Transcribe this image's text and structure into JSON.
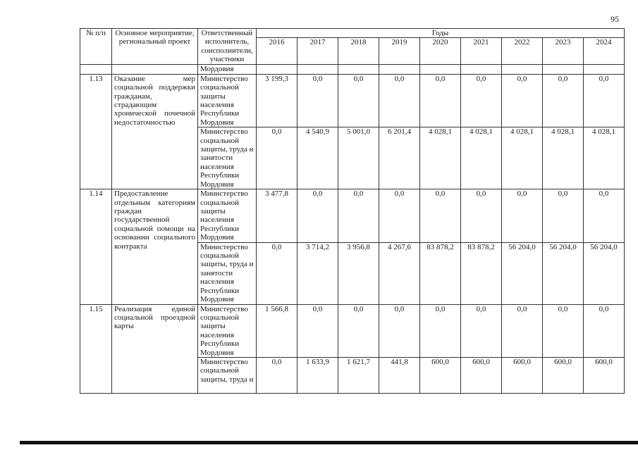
{
  "page_number": "95",
  "header": {
    "col_num": "№ п/п",
    "col_activity": "Основное мероприятие, региональный проект",
    "col_responsible": "Ответственный исполнитель, соисполнители, участники",
    "col_years": "Годы",
    "years": [
      "2016",
      "2017",
      "2018",
      "2019",
      "2020",
      "2021",
      "2022",
      "2023",
      "2024"
    ]
  },
  "continuation_row": {
    "responsible": "Мордовия"
  },
  "rows": [
    {
      "num": "1.13",
      "activity": "Оказание мер социальной поддержки гражданам, страдающим хронической почечной недостаточностью",
      "subrows": [
        {
          "responsible": "Министерство социальной защиты населения Республики Мордовия",
          "values": [
            "3 199,3",
            "0,0",
            "0,0",
            "0,0",
            "0,0",
            "0,0",
            "0,0",
            "0,0",
            "0,0"
          ]
        },
        {
          "responsible": "Министерство социальной защиты, труда и занятости населения Республики Мордовия",
          "values": [
            "0,0",
            "4 540,9",
            "5 001,0",
            "6 201,4",
            "4 028,1",
            "4 028,1",
            "4 028,1",
            "4 028,1",
            "4 028,1"
          ]
        }
      ]
    },
    {
      "num": "1.14",
      "activity": "Предоставление отдельным категориям граждан государственной социальной помощи на основании социального контракта",
      "subrows": [
        {
          "responsible": "Министерство социальной защиты населения Республики Мордовия",
          "values": [
            "3 477,8",
            "0,0",
            "0,0",
            "0,0",
            "0,0",
            "0,0",
            "0,0",
            "0,0",
            "0,0"
          ]
        },
        {
          "responsible": "Министерство социальной защиты, труда и занятости населения Республики Мордовия",
          "values": [
            "0,0",
            "3 714,2",
            "3 956,8",
            "4 267,6",
            "83 878,2",
            "83 878,2",
            "56 204,0",
            "56 204,0",
            "56 204,0"
          ]
        }
      ]
    },
    {
      "num": "1.15",
      "activity": "Реализация единой социальной проездной карты",
      "subrows": [
        {
          "responsible": "Министерство социальной защиты населения Республики Мордовия",
          "values": [
            "1 566,8",
            "0,0",
            "0,0",
            "0,0",
            "0,0",
            "0,0",
            "0,0",
            "0,0",
            "0,0"
          ]
        },
        {
          "responsible": "Министерство социальной защиты, труда и",
          "values": [
            "0,0",
            "1 633,9",
            "1 621,7",
            "441,8",
            "600,0",
            "600,0",
            "600,0",
            "600,0",
            "600,0"
          ]
        }
      ]
    }
  ]
}
